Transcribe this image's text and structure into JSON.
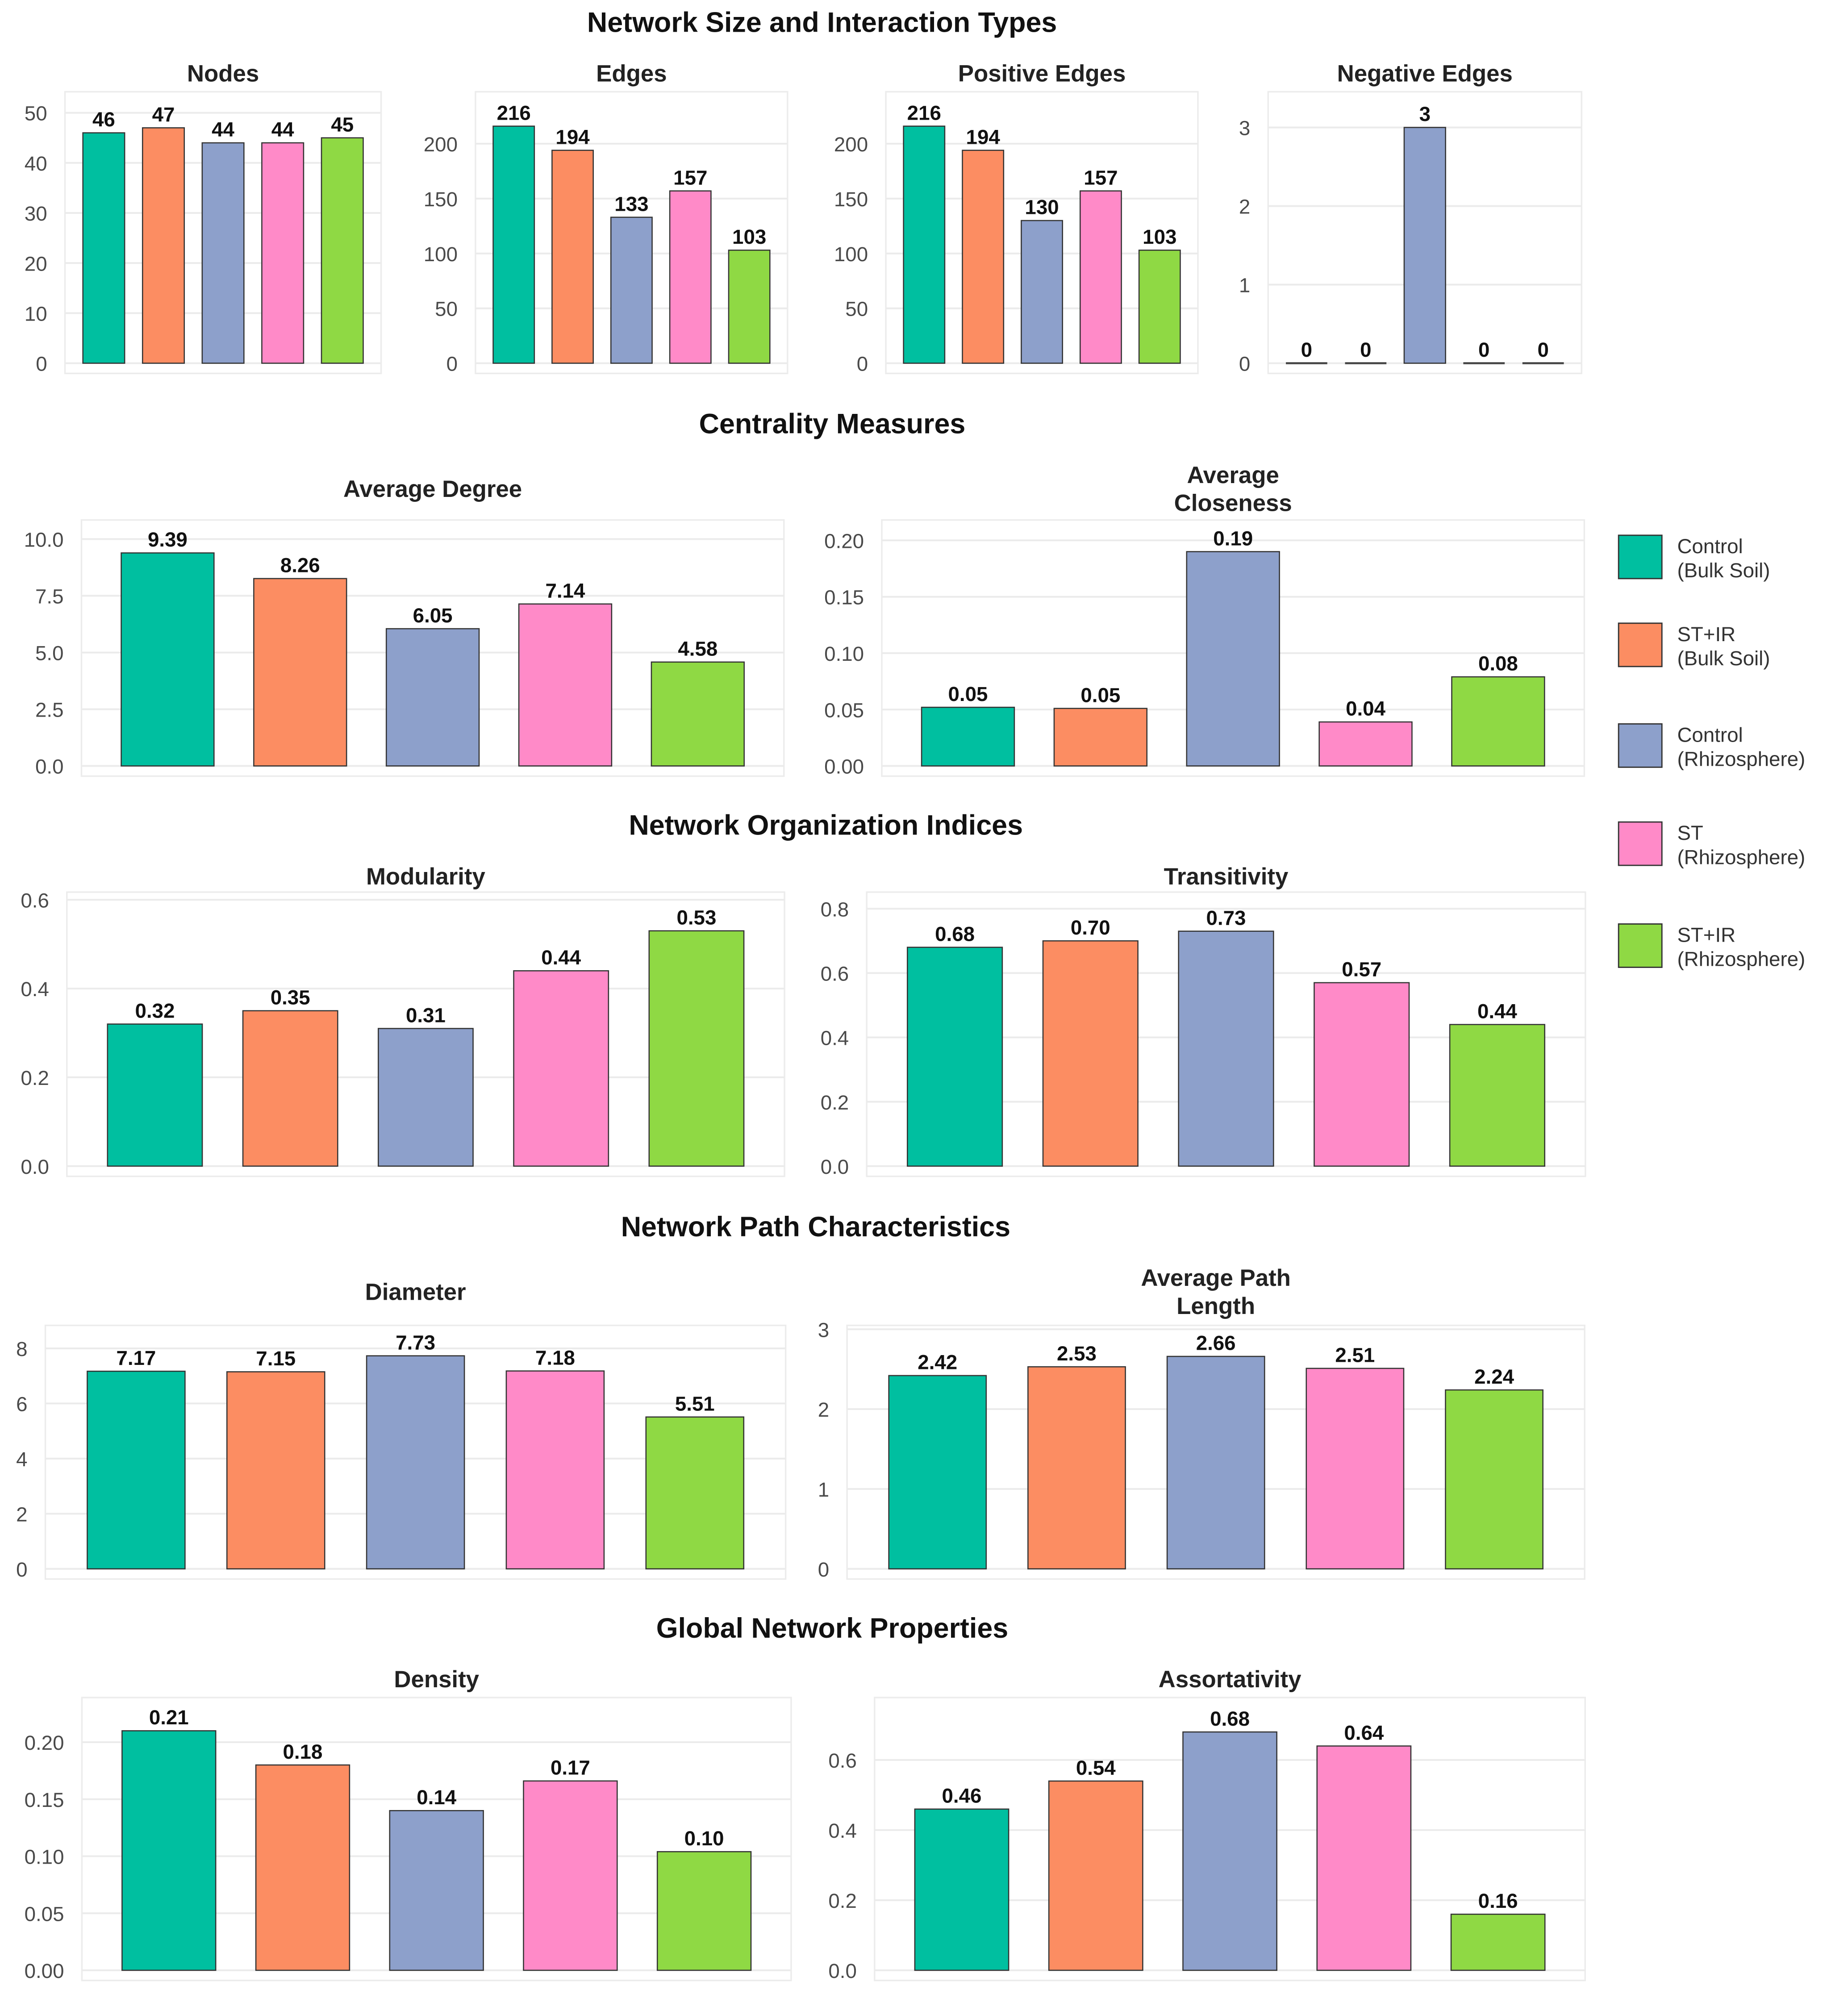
{
  "sections": [
    "Network Size and Interaction Types",
    "Centrality Measures",
    "Network Organization Indices",
    "Network Path Characteristics",
    "Global Network Properties"
  ],
  "legend": {
    "items": [
      {
        "line1": "Control",
        "line2": "(Bulk Soil)",
        "color": "#00BFA0"
      },
      {
        "line1": "ST+IR",
        "line2": "(Bulk Soil)",
        "color": "#FC8D62"
      },
      {
        "line1": "Control",
        "line2": "(Rhizosphere)",
        "color": "#8DA0CB"
      },
      {
        "line1": "ST",
        "line2": "(Rhizosphere)",
        "color": "#FF8AC8"
      },
      {
        "line1": "ST+IR",
        "line2": "(Rhizosphere)",
        "color": "#8FD944"
      }
    ]
  },
  "chart_data": [
    {
      "type": "bar",
      "title_lines": [
        "Nodes"
      ],
      "categories": [
        "Control (Bulk Soil)",
        "ST+IR (Bulk Soil)",
        "Control (Rhizosphere)",
        "ST (Rhizosphere)",
        "ST+IR (Rhizosphere)"
      ],
      "values": [
        46,
        47,
        44,
        44,
        45
      ],
      "value_labels": [
        "46",
        "47",
        "44",
        "44",
        "45"
      ],
      "yticks": [
        0,
        10,
        20,
        30,
        40,
        50
      ],
      "ytick_labels": [
        "0",
        "10",
        "20",
        "30",
        "40",
        "50"
      ],
      "ylim": [
        0,
        50
      ]
    },
    {
      "type": "bar",
      "title_lines": [
        "Edges"
      ],
      "categories": [
        "Control (Bulk Soil)",
        "ST+IR (Bulk Soil)",
        "Control (Rhizosphere)",
        "ST (Rhizosphere)",
        "ST+IR (Rhizosphere)"
      ],
      "values": [
        216,
        194,
        133,
        157,
        103
      ],
      "value_labels": [
        "216",
        "194",
        "133",
        "157",
        "103"
      ],
      "yticks": [
        0,
        50,
        100,
        150,
        200
      ],
      "ytick_labels": [
        "0",
        "50",
        "100",
        "150",
        "200"
      ],
      "ylim": [
        0,
        216
      ]
    },
    {
      "type": "bar",
      "title_lines": [
        "Positive Edges"
      ],
      "categories": [
        "Control (Bulk Soil)",
        "ST+IR (Bulk Soil)",
        "Control (Rhizosphere)",
        "ST (Rhizosphere)",
        "ST+IR (Rhizosphere)"
      ],
      "values": [
        216,
        194,
        130,
        157,
        103
      ],
      "value_labels": [
        "216",
        "194",
        "130",
        "157",
        "103"
      ],
      "yticks": [
        0,
        50,
        100,
        150,
        200
      ],
      "ytick_labels": [
        "0",
        "50",
        "100",
        "150",
        "200"
      ],
      "ylim": [
        0,
        216
      ]
    },
    {
      "type": "bar",
      "title_lines": [
        "Negative Edges"
      ],
      "categories": [
        "Control (Bulk Soil)",
        "ST+IR (Bulk Soil)",
        "Control (Rhizosphere)",
        "ST (Rhizosphere)",
        "ST+IR (Rhizosphere)"
      ],
      "values": [
        0,
        0,
        3,
        0,
        0
      ],
      "value_labels": [
        "0",
        "0",
        "3",
        "0",
        "0"
      ],
      "yticks": [
        0,
        1,
        2,
        3
      ],
      "ytick_labels": [
        "0",
        "1",
        "2",
        "3"
      ],
      "ylim": [
        0,
        3
      ]
    },
    {
      "type": "bar",
      "title_lines": [
        "Average Degree"
      ],
      "categories": [
        "Control (Bulk Soil)",
        "ST+IR (Bulk Soil)",
        "Control (Rhizosphere)",
        "ST (Rhizosphere)",
        "ST+IR (Rhizosphere)"
      ],
      "values": [
        9.39,
        8.26,
        6.05,
        7.14,
        4.58
      ],
      "value_labels": [
        "9.39",
        "8.26",
        "6.05",
        "7.14",
        "4.58"
      ],
      "yticks": [
        0,
        2.5,
        5,
        7.5,
        10
      ],
      "ytick_labels": [
        "0.0",
        "2.5",
        "5.0",
        "7.5",
        "10.0"
      ],
      "ylim": [
        0,
        10
      ]
    },
    {
      "type": "bar",
      "title_lines": [
        "Average",
        "Closeness"
      ],
      "categories": [
        "Control (Bulk Soil)",
        "ST+IR (Bulk Soil)",
        "Control (Rhizosphere)",
        "ST (Rhizosphere)",
        "ST+IR (Rhizosphere)"
      ],
      "values": [
        0.052,
        0.051,
        0.19,
        0.039,
        0.079
      ],
      "value_labels": [
        "0.05",
        "0.05",
        "0.19",
        "0.04",
        "0.08"
      ],
      "yticks": [
        0,
        0.05,
        0.1,
        0.15,
        0.2
      ],
      "ytick_labels": [
        "0.00",
        "0.05",
        "0.10",
        "0.15",
        "0.20"
      ],
      "ylim": [
        0,
        0.2
      ]
    },
    {
      "type": "bar",
      "title_lines": [
        "Modularity"
      ],
      "categories": [
        "Control (Bulk Soil)",
        "ST+IR (Bulk Soil)",
        "Control (Rhizosphere)",
        "ST (Rhizosphere)",
        "ST+IR (Rhizosphere)"
      ],
      "values": [
        0.32,
        0.35,
        0.31,
        0.44,
        0.53
      ],
      "value_labels": [
        "0.32",
        "0.35",
        "0.31",
        "0.44",
        "0.53"
      ],
      "yticks": [
        0,
        0.2,
        0.4,
        0.6
      ],
      "ytick_labels": [
        "0.0",
        "0.2",
        "0.4",
        "0.6"
      ],
      "ylim": [
        0,
        0.6
      ]
    },
    {
      "type": "bar",
      "title_lines": [
        "Transitivity"
      ],
      "categories": [
        "Control (Bulk Soil)",
        "ST+IR (Bulk Soil)",
        "Control (Rhizosphere)",
        "ST (Rhizosphere)",
        "ST+IR (Rhizosphere)"
      ],
      "values": [
        0.68,
        0.7,
        0.73,
        0.57,
        0.44
      ],
      "value_labels": [
        "0.68",
        "0.70",
        "0.73",
        "0.57",
        "0.44"
      ],
      "yticks": [
        0,
        0.2,
        0.4,
        0.6,
        0.8
      ],
      "ytick_labels": [
        "0.0",
        "0.2",
        "0.4",
        "0.6",
        "0.8"
      ],
      "ylim": [
        0,
        0.8
      ]
    },
    {
      "type": "bar",
      "title_lines": [
        "Diameter"
      ],
      "categories": [
        "Control (Bulk Soil)",
        "ST+IR (Bulk Soil)",
        "Control (Rhizosphere)",
        "ST (Rhizosphere)",
        "ST+IR (Rhizosphere)"
      ],
      "values": [
        7.17,
        7.15,
        7.73,
        7.18,
        5.51
      ],
      "value_labels": [
        "7.17",
        "7.15",
        "7.73",
        "7.18",
        "5.51"
      ],
      "yticks": [
        0,
        2,
        4,
        6,
        8
      ],
      "ytick_labels": [
        "0",
        "2",
        "4",
        "6",
        "8"
      ],
      "ylim": [
        0,
        8
      ]
    },
    {
      "type": "bar",
      "title_lines": [
        "Average Path",
        "Length"
      ],
      "categories": [
        "Control (Bulk Soil)",
        "ST+IR (Bulk Soil)",
        "Control (Rhizosphere)",
        "ST (Rhizosphere)",
        "ST+IR (Rhizosphere)"
      ],
      "values": [
        2.42,
        2.53,
        2.66,
        2.51,
        2.24
      ],
      "value_labels": [
        "2.42",
        "2.53",
        "2.66",
        "2.51",
        "2.24"
      ],
      "yticks": [
        0,
        1,
        2,
        3
      ],
      "ytick_labels": [
        "0",
        "1",
        "2",
        "3"
      ],
      "ylim": [
        0,
        3
      ]
    },
    {
      "type": "bar",
      "title_lines": [
        "Density"
      ],
      "categories": [
        "Control (Bulk Soil)",
        "ST+IR (Bulk Soil)",
        "Control (Rhizosphere)",
        "ST (Rhizosphere)",
        "ST+IR (Rhizosphere)"
      ],
      "values": [
        0.21,
        0.18,
        0.14,
        0.166,
        0.104
      ],
      "value_labels": [
        "0.21",
        "0.18",
        "0.14",
        "0.17",
        "0.10"
      ],
      "yticks": [
        0,
        0.05,
        0.1,
        0.15,
        0.2
      ],
      "ytick_labels": [
        "0.00",
        "0.05",
        "0.10",
        "0.15",
        "0.20"
      ],
      "ylim": [
        0,
        0.2
      ]
    },
    {
      "type": "bar",
      "title_lines": [
        "Assortativity"
      ],
      "categories": [
        "Control (Bulk Soil)",
        "ST+IR (Bulk Soil)",
        "Control (Rhizosphere)",
        "ST (Rhizosphere)",
        "ST+IR (Rhizosphere)"
      ],
      "values": [
        0.46,
        0.54,
        0.68,
        0.64,
        0.16
      ],
      "value_labels": [
        "0.46",
        "0.54",
        "0.68",
        "0.64",
        "0.16"
      ],
      "yticks": [
        0,
        0.2,
        0.4,
        0.6
      ],
      "ytick_labels": [
        "0.0",
        "0.2",
        "0.4",
        "0.6"
      ],
      "ylim": [
        0,
        0.6
      ]
    }
  ]
}
